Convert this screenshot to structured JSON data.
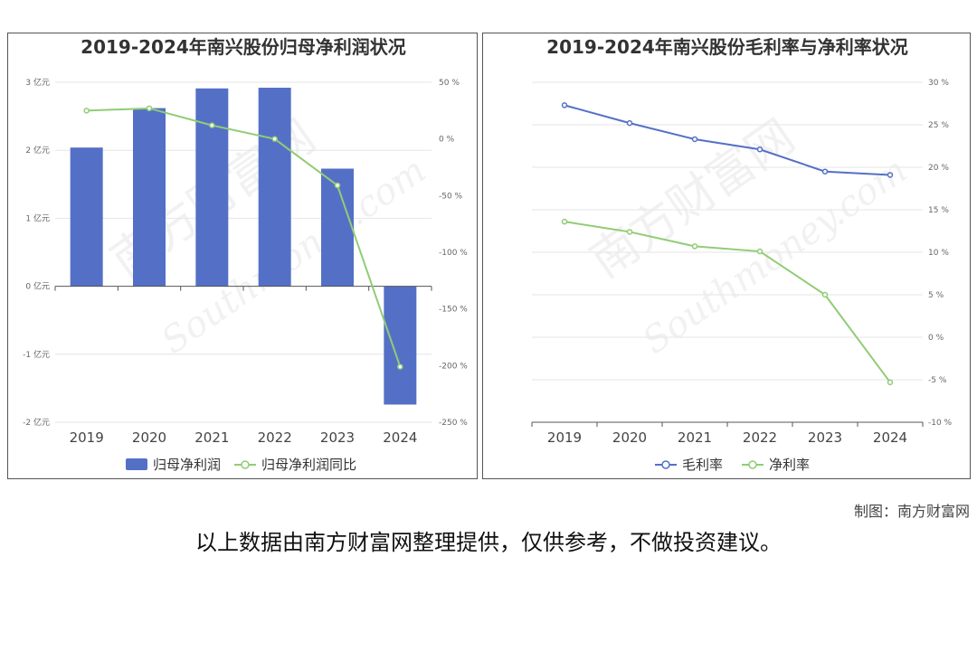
{
  "chart_data": [
    {
      "type": "bar",
      "title": "2019-2024年南兴股份归母净利润状况",
      "categories": [
        "2019",
        "2020",
        "2021",
        "2022",
        "2023",
        "2024"
      ],
      "series": [
        {
          "name": "归母净利润",
          "type": "bar",
          "axis": "left",
          "color": "#5470c6",
          "values": [
            2.04,
            2.62,
            2.91,
            2.92,
            1.73,
            -1.74
          ]
        },
        {
          "name": "归母净利润同比",
          "type": "line",
          "axis": "right",
          "color": "#91cc75",
          "values": [
            25,
            27,
            12,
            0,
            -41,
            -201
          ]
        }
      ],
      "y_left": {
        "min": -2,
        "max": 3,
        "step": 1,
        "unit": "亿元",
        "ticks": [
          "3 亿元",
          "2 亿元",
          "1 亿元",
          "0 亿元",
          "-1 亿元",
          "-2 亿元"
        ]
      },
      "y_right": {
        "min": -250,
        "max": 50,
        "step": 50,
        "unit": "%",
        "ticks": [
          "50 %",
          "0 %",
          "-50 %",
          "-100 %",
          "-150 %",
          "-200 %",
          "-250 %"
        ]
      },
      "legend": "bottom",
      "grid": true
    },
    {
      "type": "line",
      "title": "2019-2024年南兴股份毛利率与净利率状况",
      "categories": [
        "2019",
        "2020",
        "2021",
        "2022",
        "2023",
        "2024"
      ],
      "series": [
        {
          "name": "毛利率",
          "color": "#5470c6",
          "values": [
            27.3,
            25.2,
            23.3,
            22.1,
            19.5,
            19.1
          ]
        },
        {
          "name": "净利率",
          "color": "#91cc75",
          "values": [
            13.6,
            12.4,
            10.7,
            10.1,
            5.0,
            -5.3
          ]
        }
      ],
      "y_right": {
        "min": -10,
        "max": 30,
        "step": 5,
        "unit": "%",
        "ticks": [
          "30 %",
          "25 %",
          "20 %",
          "15 %",
          "10 %",
          "5 %",
          "0 %",
          "-5 %",
          "-10 %"
        ]
      },
      "legend": "bottom",
      "grid": true
    }
  ],
  "watermark": {
    "cn": "南方财富网",
    "en": "Southmoney.com"
  },
  "footer": {
    "credit": "制图：南方财富网",
    "note": "以上数据由南方财富网整理提供，仅供参考，不做投资建议。"
  }
}
